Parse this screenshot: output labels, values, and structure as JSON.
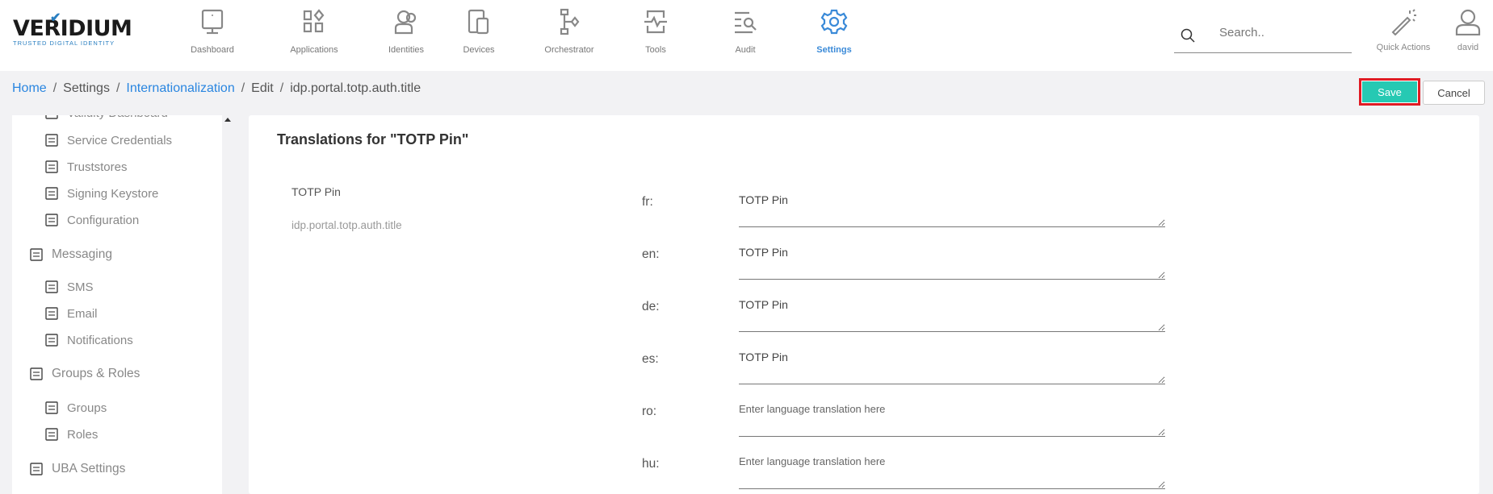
{
  "brand": {
    "name": "VERIDIUM",
    "tagline": "TRUSTED DIGITAL IDENTITY",
    "accent": "#2a7fc1"
  },
  "nav": [
    {
      "label": "Dashboard",
      "icon": "monitor-icon"
    },
    {
      "label": "Applications",
      "icon": "apps-icon"
    },
    {
      "label": "Identities",
      "icon": "users-icon"
    },
    {
      "label": "Devices",
      "icon": "devices-icon"
    },
    {
      "label": "Orchestrator",
      "icon": "flow-icon"
    },
    {
      "label": "Tools",
      "icon": "pulse-icon"
    },
    {
      "label": "Audit",
      "icon": "audit-search-icon"
    },
    {
      "label": "Settings",
      "icon": "gear-icon",
      "active": true
    }
  ],
  "search": {
    "placeholder": "Search.."
  },
  "quick_actions": "Quick Actions",
  "user": "david",
  "breadcrumb": [
    "Home",
    "Settings",
    "Internationalization",
    "Edit",
    "idp.portal.totp.auth.title"
  ],
  "actions": {
    "save": "Save",
    "cancel": "Cancel",
    "save_color": "#26c9b3",
    "highlight_color": "#e01b24"
  },
  "sidebar": [
    {
      "label": "Validity Dashboard",
      "type": "sub"
    },
    {
      "label": "Service Credentials",
      "type": "sub"
    },
    {
      "label": "Truststores",
      "type": "sub"
    },
    {
      "label": "Signing Keystore",
      "type": "sub"
    },
    {
      "label": "Configuration",
      "type": "sub"
    },
    {
      "label": "Messaging",
      "type": "section"
    },
    {
      "label": "SMS",
      "type": "sub"
    },
    {
      "label": "Email",
      "type": "sub"
    },
    {
      "label": "Notifications",
      "type": "sub"
    },
    {
      "label": "Groups & Roles",
      "type": "section"
    },
    {
      "label": "Groups",
      "type": "sub"
    },
    {
      "label": "Roles",
      "type": "sub"
    },
    {
      "label": "UBA Settings",
      "type": "section"
    }
  ],
  "main": {
    "title": "Translations for \"TOTP Pin\"",
    "field_name": "TOTP Pin",
    "field_key": "idp.portal.totp.auth.title",
    "placeholder": "Enter language translation here",
    "translations": [
      {
        "lang": "fr:",
        "value": "TOTP Pin"
      },
      {
        "lang": "en:",
        "value": "TOTP Pin"
      },
      {
        "lang": "de:",
        "value": "TOTP Pin"
      },
      {
        "lang": "es:",
        "value": "TOTP Pin"
      },
      {
        "lang": "ro:",
        "value": ""
      },
      {
        "lang": "hu:",
        "value": ""
      }
    ]
  }
}
